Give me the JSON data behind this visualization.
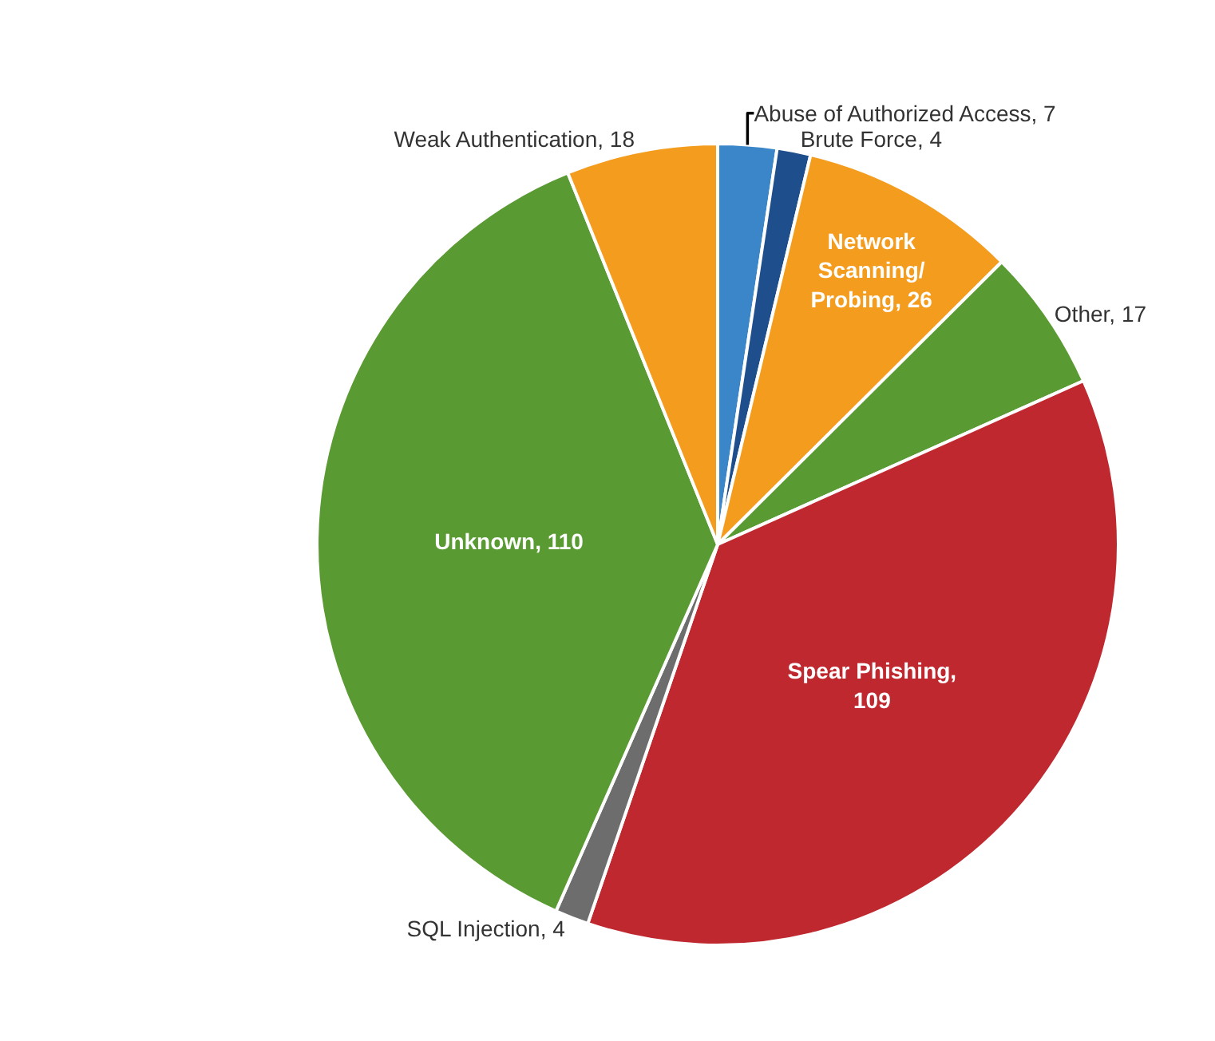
{
  "chart_data": {
    "type": "pie",
    "categories": [
      "Abuse of Authorized Access, 7",
      "Brute Force, 4",
      "Network Scanning/Probing, 26",
      "Other, 17",
      "Spear Phishing, 109",
      "SQL Injection, 4",
      "Unknown, 110",
      "Weak Authentication, 18"
    ],
    "values": [
      7,
      4,
      26,
      17,
      109,
      4,
      110,
      18
    ],
    "colors": [
      "#3a86c8",
      "#1f4e8c",
      "#f39c1e",
      "#5a9a32",
      "#c0282f",
      "#6d6d6d",
      "#5a9a32",
      "#f39c1e"
    ],
    "legend": false
  }
}
